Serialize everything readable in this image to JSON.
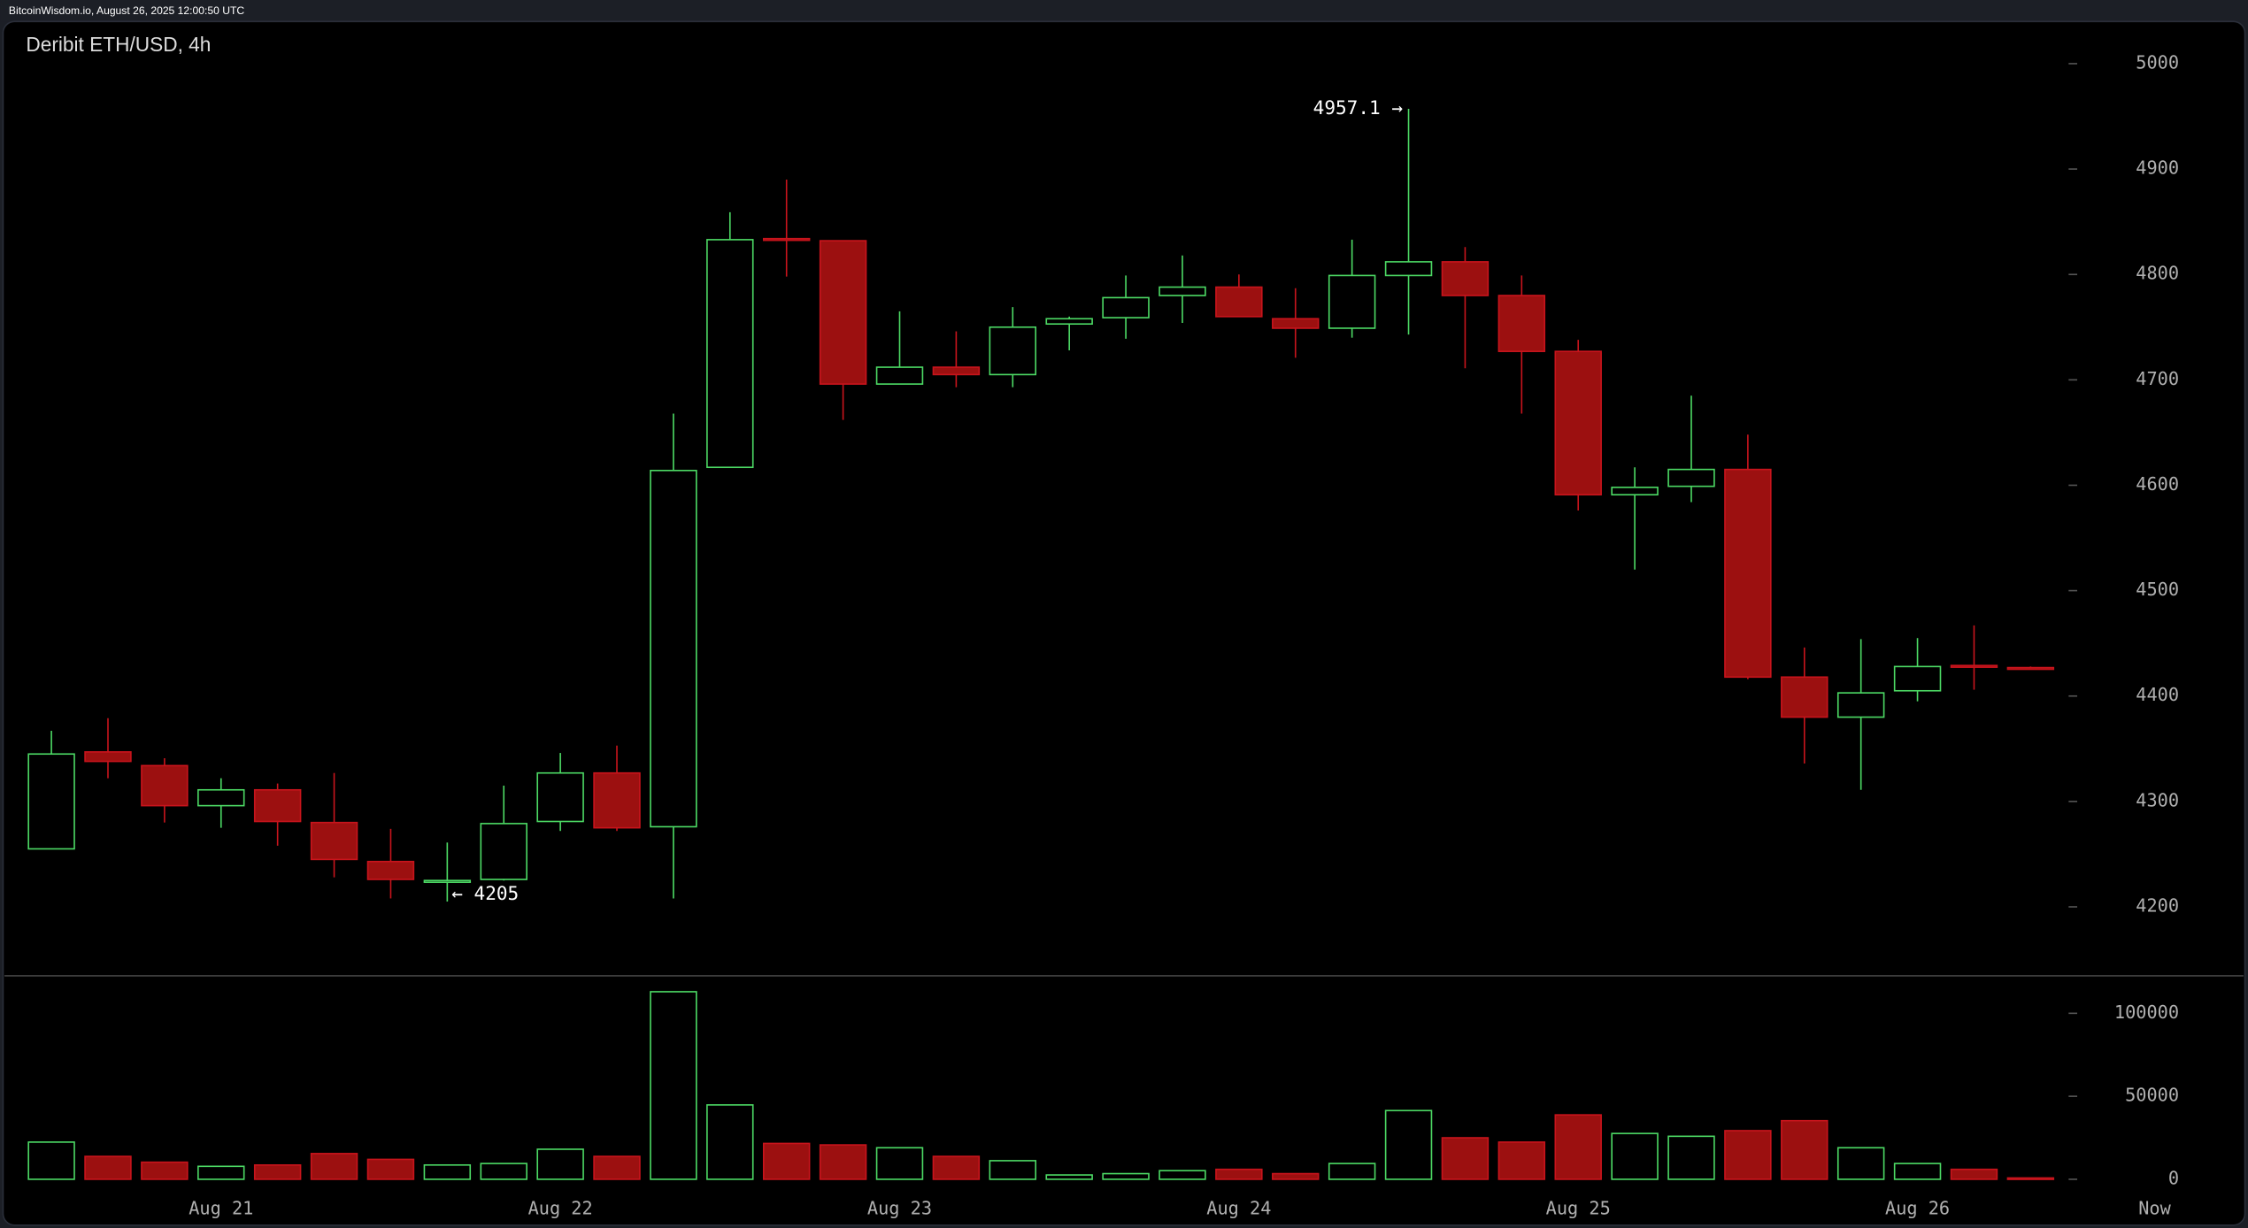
{
  "header": "BitcoinWisdom.io, August 26, 2025 12:00:50 UTC",
  "chart_data": [
    {
      "type": "candlestick",
      "title": "Deribit ETH/USD, 4h",
      "categories": [
        null,
        null,
        null,
        "Aug 21",
        null,
        null,
        null,
        null,
        null,
        "Aug 22",
        null,
        null,
        null,
        null,
        null,
        "Aug 23",
        null,
        null,
        null,
        null,
        null,
        "Aug 24",
        null,
        null,
        null,
        null,
        null,
        "Aug 25",
        null,
        null,
        null,
        null,
        null,
        "Aug 26",
        null,
        null
      ],
      "x_end_label": "Now",
      "open": [
        4255,
        4347,
        4334,
        4296,
        4311,
        4280,
        4243,
        4224,
        4226,
        4281,
        4327,
        4276,
        4617,
        4834,
        4832,
        4696,
        4712,
        4705,
        4753,
        4759,
        4780,
        4788,
        4758,
        4749,
        4799,
        4812,
        4780,
        4727,
        4591,
        4599,
        4615,
        4418,
        4380,
        4405,
        4429,
        4427
      ],
      "high": [
        4367,
        4379,
        4341,
        4322,
        4317,
        4327,
        4274,
        4261,
        4315,
        4346,
        4353,
        4668,
        4859,
        4890,
        4832,
        4765,
        4746,
        4769,
        4760,
        4799,
        4818,
        4800,
        4787,
        4833,
        4957.1,
        4826,
        4799,
        4738,
        4617,
        4685,
        4648,
        4446,
        4454,
        4455,
        4467,
        4428
      ],
      "low": [
        4255,
        4322,
        4280,
        4275,
        4258,
        4228,
        4208,
        4205,
        4225,
        4272,
        4272,
        4208,
        4617,
        4798,
        4662,
        4696,
        4693,
        4693,
        4728,
        4739,
        4754,
        4760,
        4721,
        4740,
        4743,
        4711,
        4668,
        4576,
        4520,
        4584,
        4416,
        4336,
        4311,
        4395,
        4406,
        4426
      ],
      "close": [
        4345,
        4338,
        4296,
        4311,
        4281,
        4245,
        4226,
        4225,
        4279,
        4327,
        4275,
        4614,
        4833,
        4833,
        4696,
        4712,
        4705,
        4750,
        4758,
        4778,
        4788,
        4760,
        4749,
        4799,
        4812,
        4780,
        4727,
        4591,
        4598,
        4615,
        4418,
        4380,
        4403,
        4428,
        4428,
        4426
      ],
      "up_color": "#4cd964",
      "down_color": "#c8141c",
      "down_fill": "#9c1010",
      "ylim": [
        4140,
        5040
      ],
      "yticks": [
        4200,
        4300,
        4400,
        4500,
        4600,
        4700,
        4800,
        4900,
        5000
      ],
      "annotations": [
        {
          "label": "4957.1 →",
          "value": 4957.1,
          "side": "high"
        },
        {
          "label": "← 4205",
          "value": 4205,
          "side": "low"
        }
      ]
    },
    {
      "type": "volume",
      "values": [
        22400,
        13800,
        10300,
        7800,
        8600,
        15500,
        12000,
        8600,
        9500,
        18100,
        13800,
        113000,
        44800,
        21600,
        20700,
        19000,
        13800,
        11200,
        2600,
        3400,
        5200,
        6000,
        3400,
        9500,
        41400,
        25000,
        22400,
        38800,
        27600,
        25900,
        29300,
        35300,
        19000,
        9500,
        6000,
        800
      ],
      "ylim": [
        0,
        120000
      ],
      "yticks": [
        0,
        50000,
        100000
      ]
    }
  ]
}
